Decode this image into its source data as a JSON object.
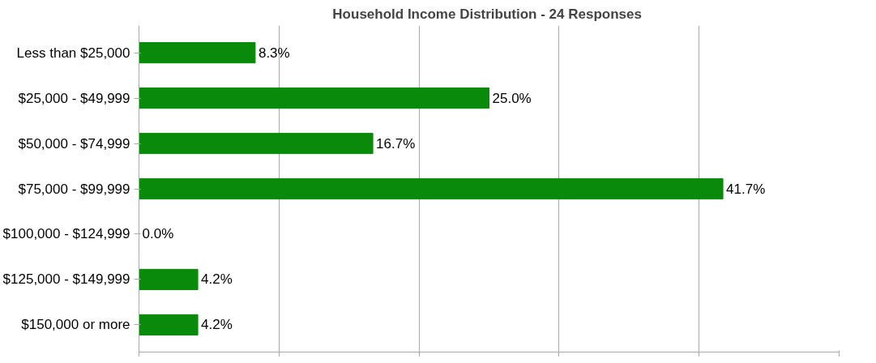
{
  "chart_data": {
    "type": "bar",
    "orientation": "horizontal",
    "title": "Household Income Distribution  - 24 Responses",
    "categories": [
      "Less than $25,000",
      "$25,000 - $49,999",
      "$50,000 - $74,999",
      "$75,000 - $99,999",
      "$100,000 - $124,999",
      "$125,000 - $149,999",
      "$150,000 or more"
    ],
    "values": [
      8.3,
      25.0,
      16.7,
      41.7,
      0.0,
      4.2,
      4.2
    ],
    "value_labels": [
      "8.3%",
      "25.0%",
      "16.7%",
      "41.7%",
      "0.0%",
      "4.2%",
      "4.2%"
    ],
    "color": "#0a8a0a",
    "xlim": [
      0,
      50
    ],
    "xticks": [
      {
        "value": 0,
        "label": null
      },
      {
        "value": 10,
        "label": null
      },
      {
        "value": 20,
        "label": null
      },
      {
        "value": 30,
        "label": null
      },
      {
        "value": 40,
        "label": null
      },
      {
        "value": 50,
        "label": null
      }
    ],
    "grid": "x",
    "tick_labels": "y"
  }
}
